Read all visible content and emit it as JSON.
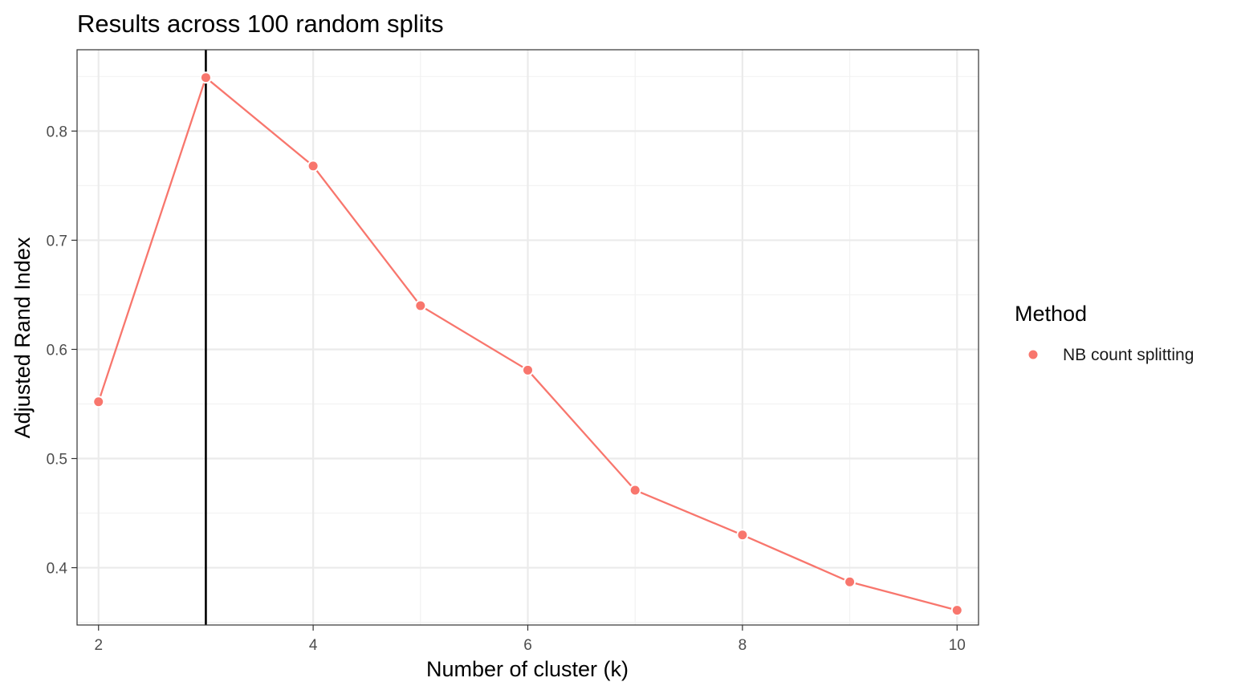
{
  "chart_data": {
    "type": "line",
    "title": "Results across 100 random splits",
    "xlabel": "Number of cluster (k)",
    "ylabel": "Adjusted Rand Index",
    "xlim": [
      1.8,
      10.2
    ],
    "ylim": [
      0.3475,
      0.8745
    ],
    "x_ticks": [
      2,
      4,
      6,
      8,
      10
    ],
    "x_tick_labels": [
      "2",
      "4",
      "6",
      "8",
      "10"
    ],
    "x_minor_ticks": [
      3,
      5,
      7,
      9
    ],
    "y_ticks": [
      0.4,
      0.5,
      0.6,
      0.7,
      0.8
    ],
    "y_tick_labels": [
      "0.4",
      "0.5",
      "0.6",
      "0.7",
      "0.8"
    ],
    "y_minor_ticks": [
      0.35,
      0.45,
      0.55,
      0.65,
      0.75,
      0.85
    ],
    "grid": true,
    "vline": {
      "x": 3,
      "color": "#000000"
    },
    "legend": {
      "title": "Method",
      "position": "right",
      "entries": [
        {
          "label": "NB count splitting",
          "color": "#F8766D"
        }
      ]
    },
    "series": [
      {
        "name": "NB count splitting",
        "color": "#F8766D",
        "x": [
          2,
          3,
          4,
          5,
          6,
          7,
          8,
          9,
          10
        ],
        "y": [
          0.552,
          0.849,
          0.768,
          0.64,
          0.581,
          0.471,
          0.43,
          0.387,
          0.361
        ]
      }
    ]
  }
}
